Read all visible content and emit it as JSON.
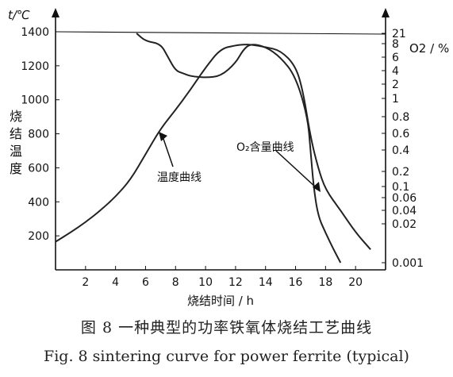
{
  "chart_data": {
    "type": "line",
    "y_axis_unit": "t/℃",
    "y_axis_left_label": "烧结温度",
    "y_axis_right_unit": "O2 / %",
    "xlabel": "烧结时间 / h",
    "x_ticks": [
      "2",
      "4",
      "6",
      "8",
      "10",
      "12",
      "14",
      "16",
      "18",
      "20"
    ],
    "y_ticks": [
      "200",
      "400",
      "600",
      "800",
      "1000",
      "1200",
      "1400"
    ],
    "y2_ticks": [
      "21",
      "8",
      "6",
      "4",
      "2",
      "1",
      "0.8",
      "0.6",
      "0.4",
      "0.2",
      "0.1",
      "0.06",
      "0.04",
      "0.02",
      "0.001"
    ],
    "xlim": [
      0,
      22
    ],
    "ylim": [
      0,
      1450
    ],
    "y2_scale": "nonlinear",
    "series": [
      {
        "name": "温度曲线",
        "x": [
          0,
          1,
          2,
          3,
          4,
          5,
          6,
          7,
          8,
          9,
          10,
          11,
          12,
          12.5,
          13,
          14,
          15,
          16,
          16.5,
          17,
          17.5,
          18,
          19,
          20,
          21
        ],
        "y": [
          165,
          220,
          280,
          350,
          430,
          530,
          680,
          830,
          940,
          1060,
          1190,
          1300,
          1320,
          1325,
          1325,
          1310,
          1290,
          1200,
          1050,
          780,
          600,
          470,
          350,
          220,
          120
        ]
      },
      {
        "name": "O2含量曲线",
        "x": [
          5.4,
          6,
          7,
          7.5,
          8,
          8.5,
          9,
          10,
          11,
          12,
          12.5,
          13,
          14,
          15,
          16,
          16.8,
          17,
          17.2,
          17.5,
          18,
          18.5,
          19
        ],
        "y": [
          "21",
          "10",
          "8",
          "6",
          "4",
          "3.5",
          "3",
          "2.8",
          "3",
          "5",
          "7",
          "8",
          "7.5",
          "6",
          "3",
          "0.8",
          "0.4",
          "0.1",
          "0.03",
          "0.01",
          "0.003",
          "0.001"
        ]
      }
    ],
    "annotations": [
      "温度曲线",
      "O₂含量曲线"
    ]
  },
  "caption": {
    "cn": "图 8   一种典型的功率铁氧体烧结工艺曲线",
    "en": "Fig. 8 sintering curve for power ferrite (typical)"
  }
}
